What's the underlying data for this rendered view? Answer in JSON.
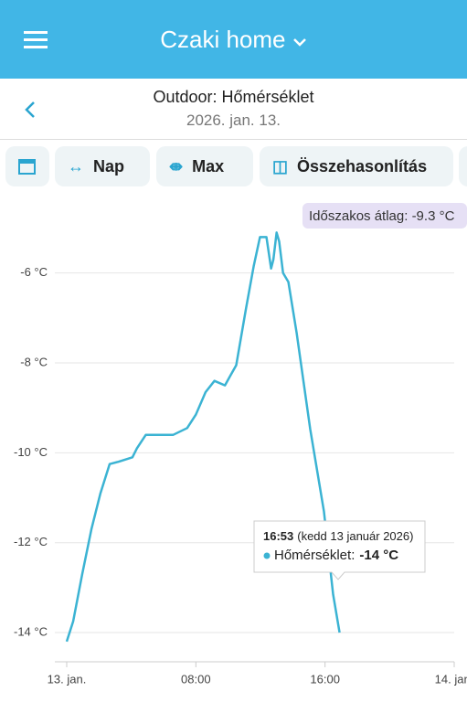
{
  "header": {
    "title": "Czaki home"
  },
  "subheader": {
    "title": "Outdoor: Hőmérséklet",
    "date": "2026. jan. 13."
  },
  "toolbar": {
    "buttons": [
      "Nap",
      "Max",
      "Összehasonlítás"
    ]
  },
  "chart_data": {
    "type": "line",
    "x": [
      0,
      0.4,
      0.96,
      1.53,
      2.09,
      2.66,
      3.2,
      4.07,
      4.35,
      4.9,
      6.6,
      7.46,
      8.0,
      8.6,
      9.15,
      9.8,
      10.5,
      11.1,
      11.58,
      11.97,
      12.37,
      12.66,
      12.8,
      13.0,
      13.16,
      13.4,
      13.73,
      14.24,
      15.08,
      15.93,
      16.5,
      16.9
    ],
    "series": [
      {
        "name": "Hőmérséklet",
        "color": "#3bb3d3",
        "values": [
          -14.2,
          -13.75,
          -12.7,
          -11.7,
          -10.9,
          -10.25,
          -10.2,
          -10.1,
          -9.9,
          -9.6,
          -9.6,
          -9.45,
          -9.15,
          -8.65,
          -8.4,
          -8.5,
          -8.05,
          -6.8,
          -5.85,
          -5.2,
          -5.2,
          -5.9,
          -5.7,
          -5.1,
          -5.3,
          -6.0,
          -6.2,
          -7.33,
          -9.47,
          -11.3,
          -13.15,
          -14.0
        ]
      }
    ],
    "xlim": [
      0,
      24
    ],
    "xticks": [
      {
        "value": 0,
        "label": "13. jan."
      },
      {
        "value": 8,
        "label": "08:00"
      },
      {
        "value": 16,
        "label": "16:00"
      },
      {
        "value": 24,
        "label": "14. jan."
      }
    ],
    "ylim": [
      -14.65,
      -4.4
    ],
    "yticks": [
      {
        "value": -6,
        "label": "-6 °C"
      },
      {
        "value": -8,
        "label": "-8 °C"
      },
      {
        "value": -10,
        "label": "-10 °C"
      },
      {
        "value": -12,
        "label": "-12 °C"
      },
      {
        "value": -14,
        "label": "-14 °C"
      }
    ],
    "grid": true,
    "average_badge": "Időszakos átlag: -9.3 °C",
    "tooltip": {
      "time": "16:53",
      "date": "(kedd 13 január 2026)",
      "label": "Hőmérséklet:",
      "value": "-14 °C"
    }
  }
}
